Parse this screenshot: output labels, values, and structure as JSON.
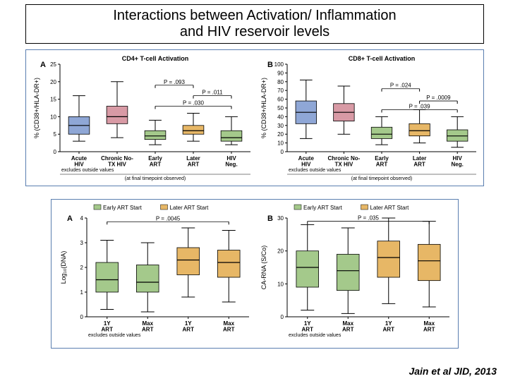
{
  "title": "Interactions between Activation/ Inflammation\nand HIV reservoir levels",
  "citation": "Jain et al JID, 2013",
  "colors": {
    "blue": "#8fa7d6",
    "red": "#d89aa5",
    "green": "#a4c98b",
    "orange": "#e7b766",
    "border": "#000000",
    "grid": "#cccccc",
    "frame": "#5a7eb0"
  },
  "panel1": {
    "footnote": "(at final timepoint observed)",
    "excludes": "excludes outside values",
    "A": {
      "letter": "A",
      "title": "CD4+ T-cell Activation",
      "ylabel": "% (CD38+/HLA-DR+)",
      "ylim": [
        0,
        25
      ],
      "yticks": [
        0,
        5,
        10,
        15,
        20,
        25
      ],
      "categories": [
        "Acute\nHIV",
        "Chronic No-\nTX HIV",
        "Early\nART",
        "Later\nART",
        "HIV\nNeg."
      ],
      "boxcolors": [
        "blue",
        "red",
        "green",
        "orange",
        "green"
      ],
      "boxes": [
        {
          "min": 3,
          "q1": 5,
          "med": 7.5,
          "q3": 10,
          "max": 16
        },
        {
          "min": 4,
          "q1": 8,
          "med": 10,
          "q3": 13,
          "max": 20
        },
        {
          "min": 2,
          "q1": 3.5,
          "med": 4.5,
          "q3": 6,
          "max": 9
        },
        {
          "min": 3,
          "q1": 5,
          "med": 6,
          "q3": 7.5,
          "max": 11
        },
        {
          "min": 2,
          "q1": 3,
          "med": 4,
          "q3": 6,
          "max": 10
        }
      ],
      "pvalues": [
        {
          "from": 2,
          "to": 4,
          "y": 13,
          "label": "P = .030"
        },
        {
          "from": 3,
          "to": 4,
          "y": 16,
          "label": "P = .011"
        },
        {
          "from": 2,
          "to": 3,
          "y": 19,
          "label": "P = .093"
        }
      ]
    },
    "B": {
      "letter": "B",
      "title": "CD8+ T-cell Activation",
      "ylabel": "% (CD38+/HLA-DR+)",
      "ylim": [
        0,
        100
      ],
      "yticks": [
        0,
        10,
        20,
        30,
        40,
        50,
        60,
        70,
        80,
        90,
        100
      ],
      "categories": [
        "Acute\nHIV",
        "Chronic No-\nTX HIV",
        "Early\nART",
        "Later\nART",
        "HIV\nNeg."
      ],
      "boxcolors": [
        "blue",
        "red",
        "green",
        "orange",
        "green"
      ],
      "boxes": [
        {
          "min": 15,
          "q1": 32,
          "med": 45,
          "q3": 58,
          "max": 82
        },
        {
          "min": 20,
          "q1": 35,
          "med": 45,
          "q3": 55,
          "max": 75
        },
        {
          "min": 8,
          "q1": 15,
          "med": 20,
          "q3": 28,
          "max": 40
        },
        {
          "min": 10,
          "q1": 18,
          "med": 24,
          "q3": 32,
          "max": 48
        },
        {
          "min": 5,
          "q1": 12,
          "med": 18,
          "q3": 25,
          "max": 40
        }
      ],
      "pvalues": [
        {
          "from": 2,
          "to": 4,
          "y": 48,
          "label": "P = .039"
        },
        {
          "from": 3,
          "to": 4,
          "y": 58,
          "label": "P = .0009"
        },
        {
          "from": 2,
          "to": 3,
          "y": 72,
          "label": "P = .024"
        }
      ]
    }
  },
  "panel2": {
    "legend": [
      {
        "color": "green",
        "label": "Early ART Start"
      },
      {
        "color": "orange",
        "label": "Later ART Start"
      }
    ],
    "excludes": "excludes outside values",
    "A": {
      "letter": "A",
      "ylabel": "Log₁₀(DNA)",
      "ylim": [
        0,
        4
      ],
      "yticks": [
        0,
        1,
        2,
        3,
        4
      ],
      "categories": [
        "1Y\nART",
        "Max\nART",
        "1Y\nART",
        "Max\nART"
      ],
      "boxcolors": [
        "green",
        "green",
        "orange",
        "orange"
      ],
      "boxes": [
        {
          "min": 0.3,
          "q1": 1.0,
          "med": 1.5,
          "q3": 2.2,
          "max": 3.1
        },
        {
          "min": 0.2,
          "q1": 1.0,
          "med": 1.4,
          "q3": 2.1,
          "max": 3.0
        },
        {
          "min": 0.8,
          "q1": 1.7,
          "med": 2.3,
          "q3": 2.8,
          "max": 3.6
        },
        {
          "min": 0.6,
          "q1": 1.6,
          "med": 2.2,
          "q3": 2.7,
          "max": 3.5
        }
      ],
      "pvalues": [
        {
          "from": 0,
          "to": 3,
          "y": 3.85,
          "label": "P = .0045"
        }
      ]
    },
    "B": {
      "letter": "B",
      "ylabel": "CA-RNA (S/Co)",
      "ylim": [
        0,
        30
      ],
      "yticks": [
        0,
        10,
        20,
        30
      ],
      "categories": [
        "1Y\nART",
        "Max\nART",
        "1Y\nART",
        "Max\nART"
      ],
      "boxcolors": [
        "green",
        "green",
        "orange",
        "orange"
      ],
      "boxes": [
        {
          "min": 2,
          "q1": 9,
          "med": 15,
          "q3": 20,
          "max": 28
        },
        {
          "min": 1,
          "q1": 8,
          "med": 14,
          "q3": 19,
          "max": 27
        },
        {
          "min": 4,
          "q1": 12,
          "med": 18,
          "q3": 23,
          "max": 30
        },
        {
          "min": 3,
          "q1": 11,
          "med": 17,
          "q3": 22,
          "max": 29
        }
      ],
      "pvalues": [
        {
          "from": 0,
          "to": 3,
          "y": 29,
          "label": "P = .035"
        }
      ]
    }
  }
}
